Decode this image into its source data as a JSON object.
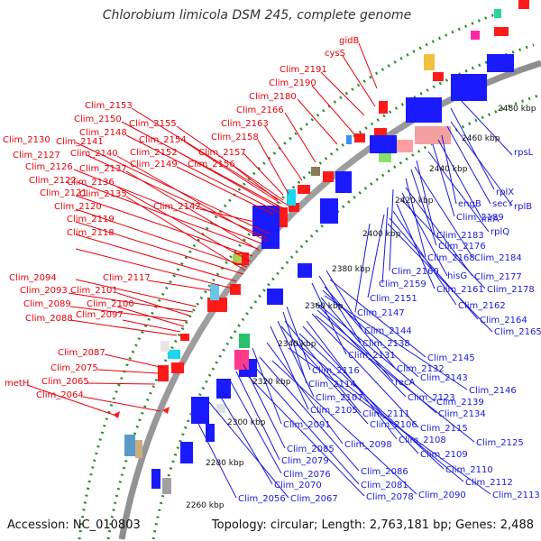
{
  "title": "Chlorobium limicola DSM 245, complete genome",
  "footer": {
    "accession": "Accession: NC_010803",
    "summary": "Topology: circular; Length: 2,763,181 bp; Genes: 2,488"
  },
  "colors": {
    "forward": "#ff1a1a",
    "reverse": "#1a1aff",
    "backbone": "#999999",
    "dots": "#2a8a2a"
  },
  "kbp_ticks": [
    "2260 kbp",
    "2280 kbp",
    "2300 kbp",
    "2320 kbp",
    "2340 kbp",
    "2360 kbp",
    "2380 kbp",
    "2400 kbp",
    "2420 kbp",
    "2440 kbp",
    "2460 kbp",
    "2480 kbp"
  ],
  "red_labels": [
    "gidB",
    "cysS",
    "Clim_2191",
    "Clim_2190",
    "Clim_2180",
    "Clim_2166",
    "Clim_2163",
    "Clim_2153",
    "Clim_2150",
    "Clim_2148",
    "Clim_2155",
    "Clim_2154",
    "Clim_2152",
    "Clim_2158",
    "Clim_2157",
    "Clim_2156",
    "Clim_2149",
    "Clim_2130",
    "Clim_2141",
    "Clim_2140",
    "Clim_2127",
    "Clim_2126",
    "Clim_2137",
    "Clim_2122",
    "Clim_2136",
    "Clim_2121",
    "Clim_2135",
    "Clim_2120",
    "Clim_2142",
    "Clim_2119",
    "Clim_2118",
    "Clim_2117",
    "Clim_2094",
    "Clim_2093",
    "Clim_2101",
    "Clim_2089",
    "Clim_2100",
    "Clim_2097",
    "Clim_2088",
    "Clim_2087",
    "Clim_2075",
    "metH",
    "Clim_2065",
    "Clim_2064"
  ],
  "blue_labels": [
    "rpsL",
    "rplX",
    "rplB",
    "secY",
    "engB",
    "infA",
    "Clim_2189",
    "rplQ",
    "Clim_2183",
    "Clim_2184",
    "Clim_2176",
    "Clim_2168",
    "Clim_2160",
    "Clim_2177",
    "hisG",
    "Clim_2159",
    "Clim_2178",
    "Clim_2161",
    "Clim_2151",
    "Clim_2162",
    "Clim_2147",
    "Clim_2164",
    "Clim_2165",
    "Clim_2144",
    "Clim_2138",
    "Clim_2131",
    "Clim_2145",
    "Clim_2132",
    "Clim_2116",
    "Clim_2143",
    "Clim_2114",
    "recA",
    "Clim_2146",
    "Clim_2107",
    "Clim_2123",
    "Clim_2139",
    "Clim_2105",
    "Clim_2111",
    "Clim_2134",
    "Clim_2106",
    "Clim_2115",
    "Clim_2091",
    "Clim_2108",
    "Clim_2125",
    "Clim_2098",
    "Clim_2109",
    "Clim_2085",
    "Clim_2079",
    "Clim_2110",
    "Clim_2086",
    "Clim_2076",
    "Clim_2112",
    "Clim_2070",
    "Clim_2081",
    "Clim_2113",
    "Clim_2056",
    "Clim_2067",
    "Clim_2078",
    "Clim_2090"
  ]
}
